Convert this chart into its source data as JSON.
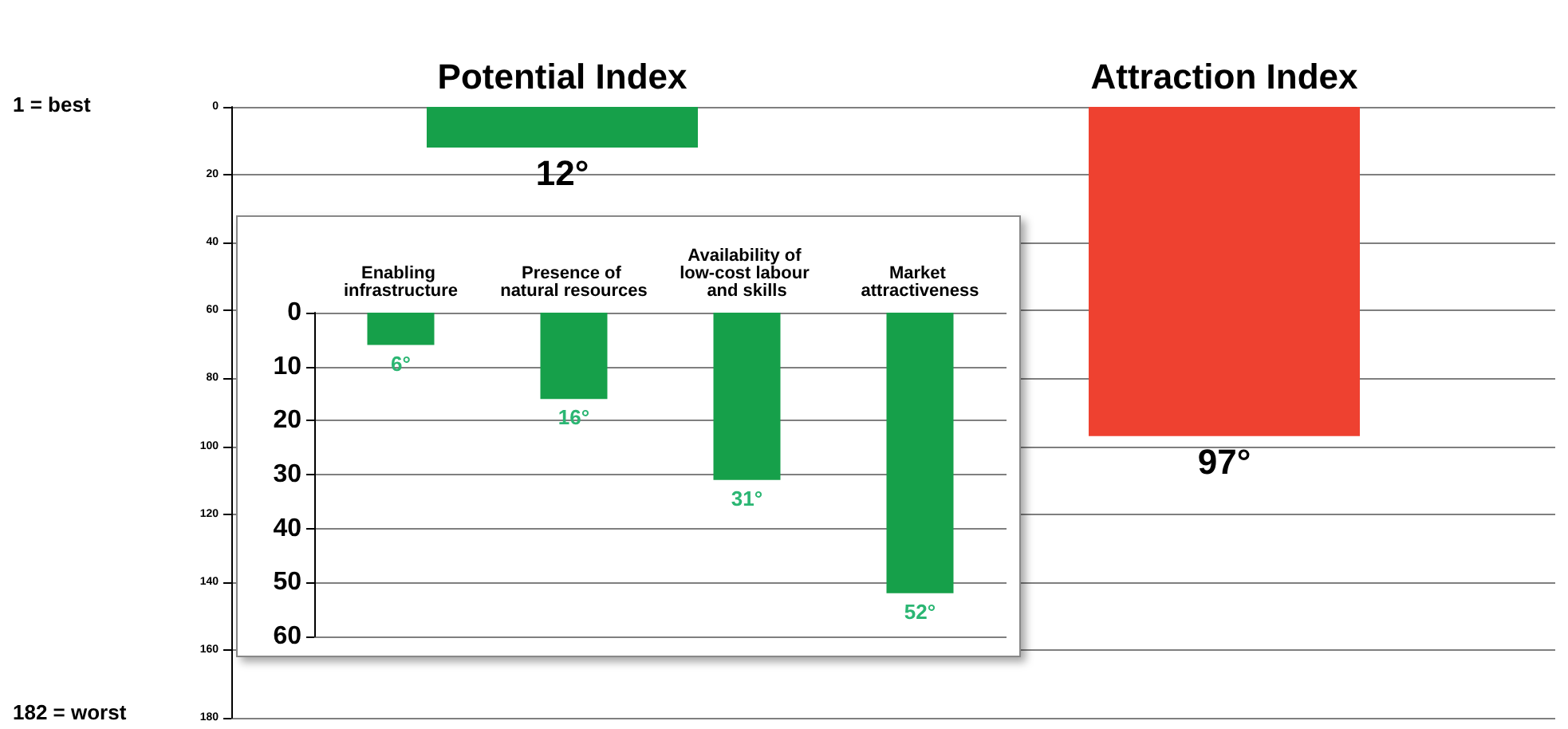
{
  "chart_data": [
    {
      "type": "bar",
      "categories": [
        "Potential Index",
        "Attraction Index"
      ],
      "values": [
        12,
        97
      ],
      "colors": [
        "#16a04a",
        "#ee4130"
      ],
      "value_labels": [
        "12°",
        "97°"
      ],
      "ylim": [
        180,
        0
      ],
      "yticks": [
        0,
        20,
        40,
        60,
        80,
        100,
        120,
        140,
        160,
        180
      ],
      "grid": "y",
      "annotations": [
        "1 = best",
        "182 = worst"
      ]
    },
    {
      "type": "bar",
      "categories": [
        "Enabling infrastructure",
        "Presence of natural resources",
        "Availability of low-cost labour and skills",
        "Market attractiveness"
      ],
      "values": [
        6,
        16,
        31,
        52
      ],
      "color": "#16a04a",
      "value_labels": [
        "6°",
        "16°",
        "31°",
        "52°"
      ],
      "ylim": [
        60,
        0
      ],
      "yticks": [
        0,
        10,
        20,
        30,
        40,
        50,
        60
      ],
      "grid": "y"
    }
  ]
}
